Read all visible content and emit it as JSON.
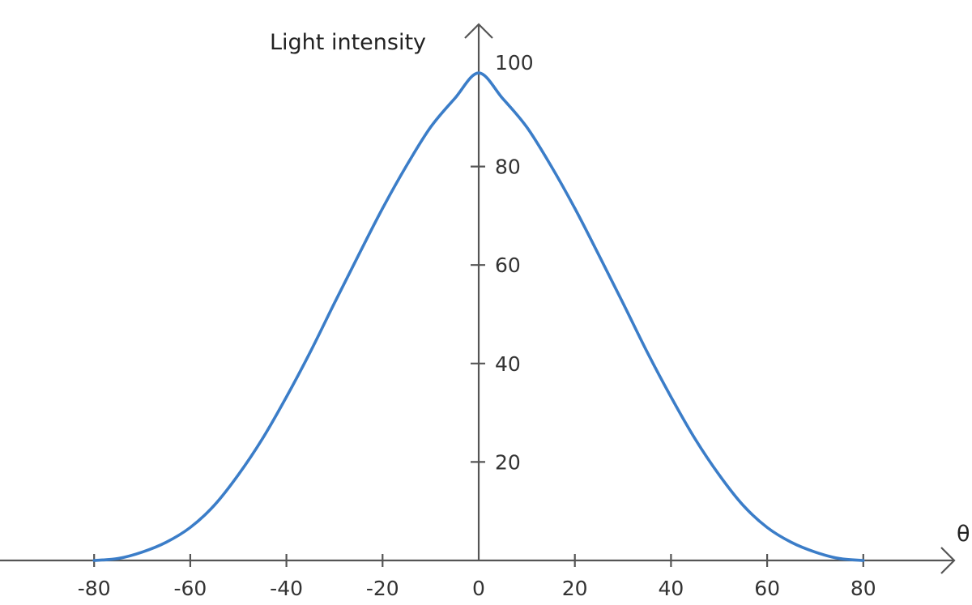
{
  "chart_data": {
    "type": "line",
    "ylabel": "Light intensity",
    "xlabel": "θ",
    "xlim": [
      -80,
      80
    ],
    "ylim": [
      0,
      100
    ],
    "x_ticks": [
      -80,
      -60,
      -40,
      -20,
      0,
      20,
      40,
      60,
      80
    ],
    "y_ticks": [
      20,
      40,
      60,
      80,
      100
    ],
    "series": [
      {
        "color": "#3b7dc8",
        "x": [
          -80,
          -75,
          -70,
          -65,
          -60,
          -55,
          -50,
          -45,
          -40,
          -35,
          -30,
          -25,
          -20,
          -15,
          -10,
          -5,
          0,
          5,
          10,
          15,
          20,
          25,
          30,
          35,
          40,
          45,
          50,
          55,
          60,
          65,
          70,
          75,
          80
        ],
        "y": [
          0,
          0.4,
          1.7,
          3.7,
          6.7,
          11.2,
          17.4,
          24.7,
          33.2,
          42.4,
          52.3,
          62.0,
          71.5,
          80.2,
          88.0,
          93.8,
          99.0,
          93.8,
          88.0,
          80.2,
          71.5,
          62.0,
          52.3,
          42.4,
          33.2,
          24.7,
          17.4,
          11.2,
          6.7,
          3.7,
          1.7,
          0.4,
          0
        ]
      }
    ]
  }
}
